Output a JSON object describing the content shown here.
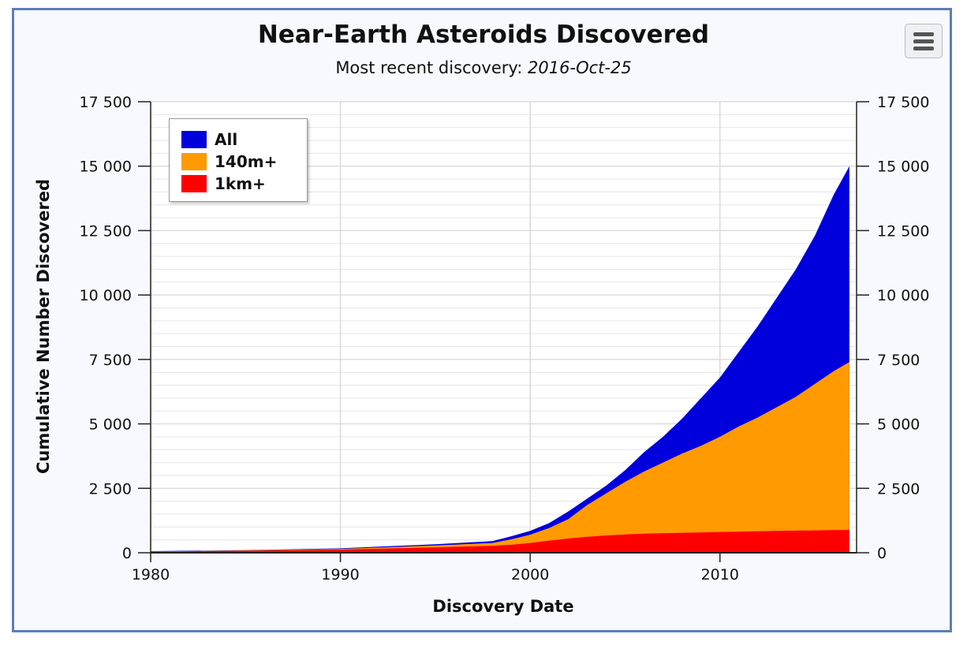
{
  "chart_data": {
    "type": "area",
    "title": "Near-Earth Asteroids Discovered",
    "subtitle_prefix": "Most recent discovery: ",
    "subtitle_date": "2016-Oct-25",
    "xlabel": "Discovery Date",
    "ylabel": "Cumulative Number Discovered",
    "xlim": [
      1980,
      2016.82
    ],
    "ylim": [
      0,
      17500
    ],
    "x_ticks": [
      "1980",
      "1990",
      "2000",
      "2010"
    ],
    "y_ticks": [
      "0",
      "2 500",
      "5 000",
      "7 500",
      "10 000",
      "12 500",
      "15 000",
      "17 500"
    ],
    "grid": true,
    "legend_position": "top-left",
    "series": [
      {
        "name": "All",
        "color": "#0000dd",
        "x": [
          1980,
          1985,
          1990,
          1995,
          1998,
          1999,
          2000,
          2001,
          2002,
          2003,
          2004,
          2005,
          2006,
          2007,
          2008,
          2009,
          2010,
          2011,
          2012,
          2013,
          2014,
          2015,
          2016,
          2016.82
        ],
        "values": [
          60,
          100,
          170,
          330,
          450,
          640,
          850,
          1150,
          1600,
          2100,
          2600,
          3200,
          3900,
          4500,
          5200,
          6000,
          6800,
          7800,
          8800,
          9900,
          11000,
          12300,
          13900,
          15000
        ]
      },
      {
        "name": "140m+",
        "color": "#ff9a00",
        "x": [
          1980,
          1985,
          1990,
          1995,
          1998,
          1999,
          2000,
          2001,
          2002,
          2003,
          2004,
          2005,
          2006,
          2007,
          2008,
          2009,
          2010,
          2011,
          2012,
          2013,
          2014,
          2015,
          2016,
          2016.82
        ],
        "values": [
          50,
          90,
          150,
          280,
          380,
          520,
          700,
          960,
          1300,
          1850,
          2300,
          2750,
          3150,
          3500,
          3850,
          4150,
          4500,
          4900,
          5250,
          5650,
          6050,
          6550,
          7050,
          7400
        ]
      },
      {
        "name": "1km+",
        "color": "#ff0000",
        "x": [
          1980,
          1985,
          1990,
          1995,
          1998,
          1999,
          2000,
          2001,
          2002,
          2003,
          2004,
          2005,
          2006,
          2007,
          2008,
          2009,
          2010,
          2011,
          2012,
          2013,
          2014,
          2015,
          2016,
          2016.82
        ],
        "values": [
          40,
          75,
          120,
          210,
          270,
          310,
          380,
          470,
          550,
          620,
          670,
          710,
          740,
          760,
          775,
          790,
          805,
          820,
          835,
          850,
          860,
          870,
          880,
          885
        ]
      }
    ]
  }
}
